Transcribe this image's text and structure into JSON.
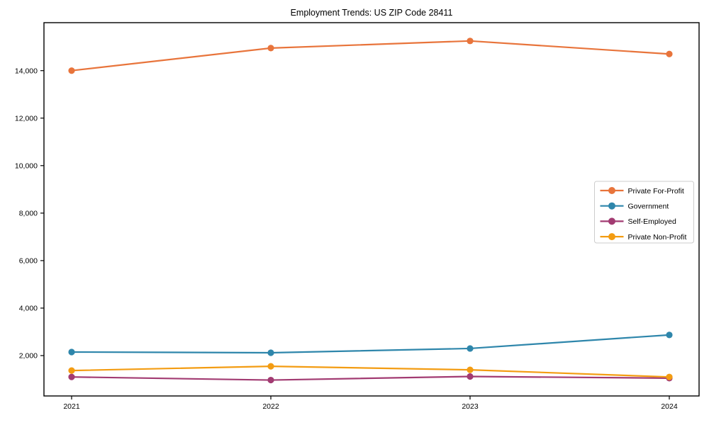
{
  "chart_data": {
    "type": "line",
    "title": "Employment Trends: US ZIP Code 28411",
    "xlabel": "",
    "ylabel": "",
    "x": [
      "2021",
      "2022",
      "2023",
      "2024"
    ],
    "series": [
      {
        "name": "Private For-Profit",
        "color": "#E8743B",
        "values": [
          14000,
          14950,
          15250,
          14700
        ]
      },
      {
        "name": "Government",
        "color": "#2E86AB",
        "values": [
          2150,
          2120,
          2300,
          2870
        ]
      },
      {
        "name": "Self-Employed",
        "color": "#A23B72",
        "values": [
          1100,
          970,
          1120,
          1050
        ]
      },
      {
        "name": "Private Non-Profit",
        "color": "#F39C12",
        "values": [
          1370,
          1550,
          1400,
          1100
        ]
      }
    ],
    "y_ticks": [
      {
        "value": 2000,
        "label": "2,000"
      },
      {
        "value": 4000,
        "label": "4,000"
      },
      {
        "value": 6000,
        "label": "6,000"
      },
      {
        "value": 8000,
        "label": "8,000"
      },
      {
        "value": 10000,
        "label": "10,000"
      },
      {
        "value": 12000,
        "label": "12,000"
      },
      {
        "value": 14000,
        "label": "14,000"
      }
    ],
    "ylim": [
      300,
      16020
    ],
    "grid": false,
    "legend_position": "center-right",
    "axis_color": "#000000",
    "legend_border_color": "#cccccc",
    "background": "#ffffff"
  }
}
